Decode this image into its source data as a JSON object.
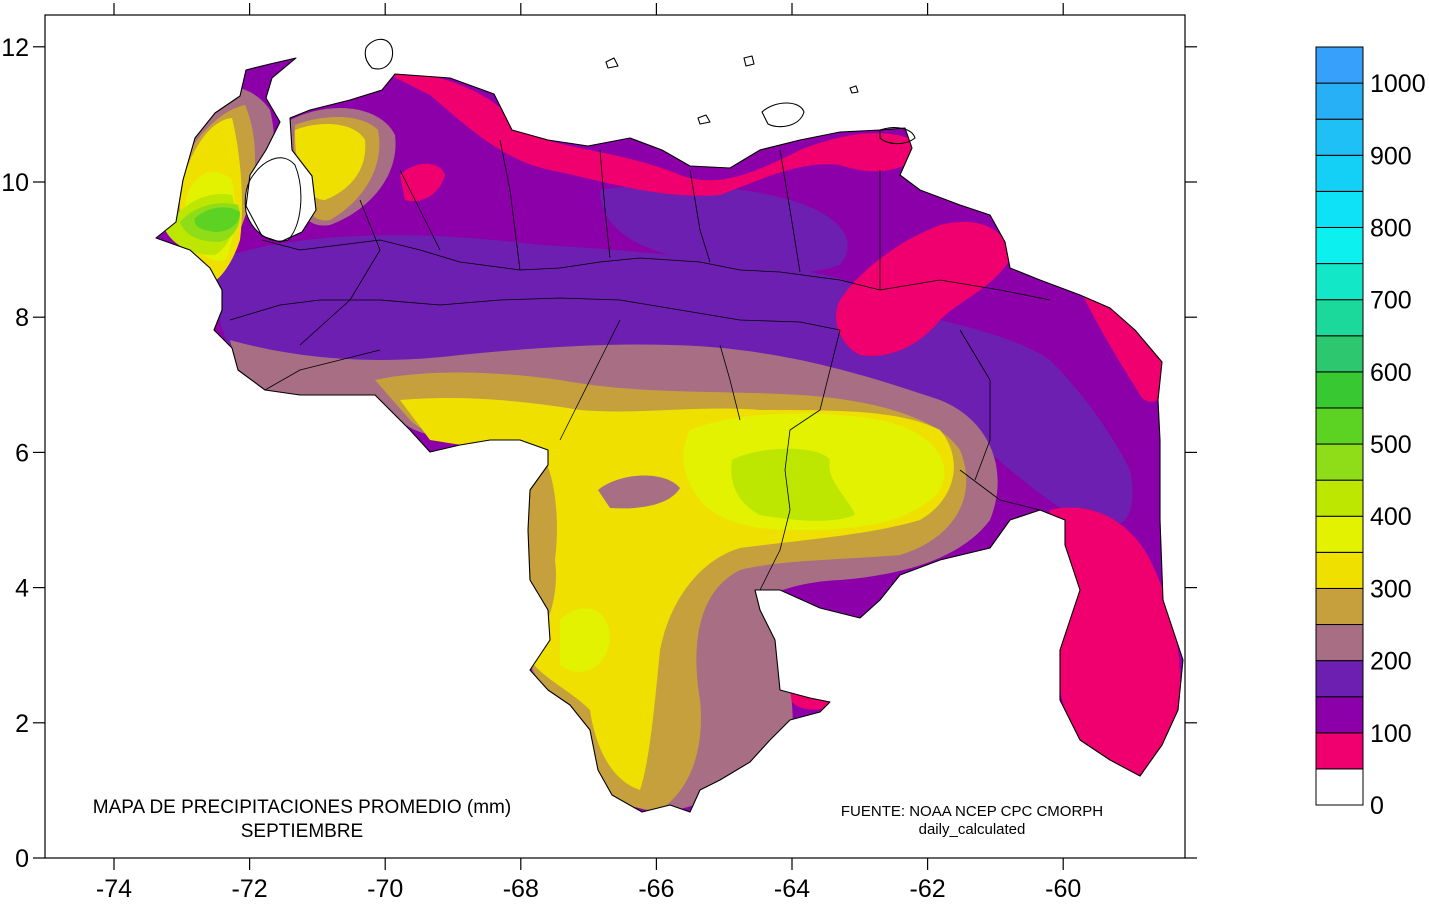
{
  "map": {
    "title_line1": "MAPA DE PRECIPITACIONES PROMEDIO (mm)",
    "title_line2": "SEPTIEMBRE",
    "source_line1": "FUENTE: NOAA NCEP CPC CMORPH",
    "source_line2": "daily_calculated",
    "x_ticks": [
      "-74",
      "-72",
      "-70",
      "-68",
      "-66",
      "-64",
      "-62",
      "-60"
    ],
    "y_ticks": [
      "0",
      "2",
      "4",
      "6",
      "8",
      "10",
      "12"
    ],
    "axis_ranges": {
      "lon": [
        -75,
        -58
      ],
      "lat": [
        0,
        12.5
      ]
    },
    "regions": [
      "Venezuela"
    ]
  },
  "legend": {
    "labels": [
      "0",
      "100",
      "200",
      "300",
      "400",
      "500",
      "600",
      "700",
      "800",
      "900",
      "1000"
    ],
    "bins": [
      {
        "min": 0,
        "max": 50,
        "color": "#ffffff"
      },
      {
        "min": 50,
        "max": 100,
        "color": "#f0006e"
      },
      {
        "min": 100,
        "max": 150,
        "color": "#8c00aa"
      },
      {
        "min": 150,
        "max": 200,
        "color": "#6c1fb0"
      },
      {
        "min": 200,
        "max": 250,
        "color": "#a86e84"
      },
      {
        "min": 250,
        "max": 300,
        "color": "#c6a03c"
      },
      {
        "min": 300,
        "max": 350,
        "color": "#f0e000"
      },
      {
        "min": 350,
        "max": 400,
        "color": "#e2f200"
      },
      {
        "min": 400,
        "max": 450,
        "color": "#bde600"
      },
      {
        "min": 450,
        "max": 500,
        "color": "#8fdc18"
      },
      {
        "min": 500,
        "max": 550,
        "color": "#5cd222"
      },
      {
        "min": 550,
        "max": 600,
        "color": "#38c832"
      },
      {
        "min": 600,
        "max": 650,
        "color": "#2cc76e"
      },
      {
        "min": 650,
        "max": 700,
        "color": "#1ad99a"
      },
      {
        "min": 700,
        "max": 750,
        "color": "#12e8c8"
      },
      {
        "min": 750,
        "max": 800,
        "color": "#0df0f0"
      },
      {
        "min": 800,
        "max": 850,
        "color": "#0ee2f6"
      },
      {
        "min": 850,
        "max": 900,
        "color": "#14cff6"
      },
      {
        "min": 900,
        "max": 950,
        "color": "#1ec0f6"
      },
      {
        "min": 950,
        "max": 1000,
        "color": "#28b0f6"
      },
      {
        "min": 1000,
        "max": 1050,
        "color": "#36a0fa"
      }
    ]
  },
  "colors": {
    "frame": "#000000",
    "background": "#ffffff"
  }
}
